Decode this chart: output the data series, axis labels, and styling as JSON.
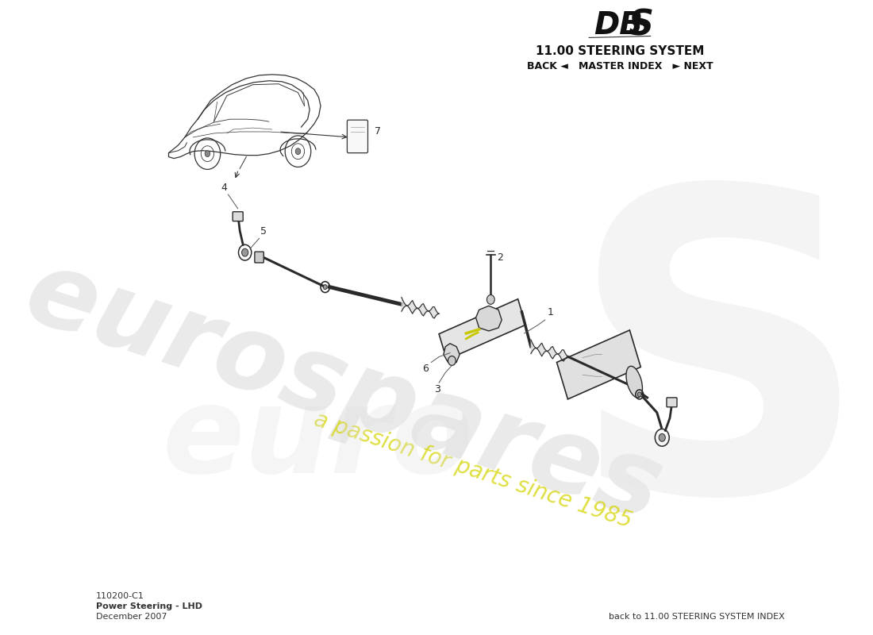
{
  "bg_color": "#ffffff",
  "title_dbs": "DBS",
  "title_system": "11.00 STEERING SYSTEM",
  "nav_text": "BACK ◄   MASTER INDEX   ► NEXT",
  "footer_code": "110200-C1",
  "footer_name": "Power Steering - LHD",
  "footer_date": "December 2007",
  "footer_right": "back to 11.00 STEERING SYSTEM INDEX",
  "watermark_main": "eurospares",
  "watermark_sub": "a passion for parts since 1985",
  "watermark_gray": "#d0d0d0",
  "watermark_yellow": "#d4d400",
  "diagram_dark": "#2a2a2a",
  "diagram_mid": "#555555",
  "diagram_light": "#aaaaaa",
  "rack_color": "#e8e8e8",
  "motor_color": "#e0e0e0",
  "yellow_line": "#c8c800",
  "part_label_color": "#1a1a1a"
}
